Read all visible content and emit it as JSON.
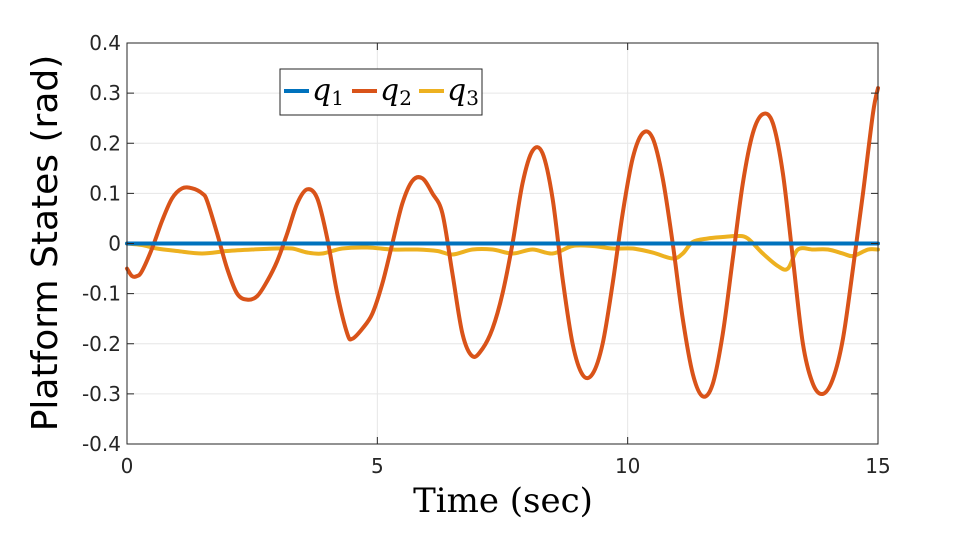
{
  "chart_data": {
    "type": "line",
    "title": "",
    "xlabel": "Time (sec)",
    "ylabel": "Platform States (rad)",
    "xlim": [
      0,
      15
    ],
    "ylim": [
      -0.4,
      0.4
    ],
    "xticks": [
      0,
      5,
      10,
      15
    ],
    "xtick_labels": [
      "0",
      "5",
      "10",
      "15"
    ],
    "yticks": [
      -0.4,
      -0.3,
      -0.2,
      -0.1,
      0,
      0.1,
      0.2,
      0.3,
      0.4
    ],
    "ytick_labels": [
      "-0.4",
      "-0.3",
      "-0.2",
      "-0.1",
      "0",
      "0.1",
      "0.2",
      "0.3",
      "0.4"
    ],
    "grid": true,
    "legend_position": "top-left",
    "series": [
      {
        "name": "q1",
        "symbol": "q",
        "subscript": "1",
        "color": "#0072BD",
        "x": [
          0,
          15
        ],
        "y": [
          0,
          0
        ]
      },
      {
        "name": "q2",
        "symbol": "q",
        "subscript": "2",
        "color": "#D95319",
        "x": [
          0,
          0.1,
          0.2,
          0.3,
          0.5,
          0.7,
          0.9,
          1.1,
          1.3,
          1.5,
          1.6,
          1.8,
          2.0,
          2.2,
          2.4,
          2.6,
          2.8,
          3.0,
          3.2,
          3.4,
          3.6,
          3.8,
          4.0,
          4.2,
          4.4,
          4.5,
          4.7,
          4.9,
          5.1,
          5.3,
          5.5,
          5.7,
          5.9,
          6.1,
          6.3,
          6.5,
          6.7,
          6.9,
          7.1,
          7.3,
          7.5,
          7.7,
          7.9,
          8.1,
          8.3,
          8.5,
          8.7,
          8.9,
          9.1,
          9.3,
          9.5,
          9.7,
          9.9,
          10.1,
          10.3,
          10.5,
          10.7,
          10.9,
          11.1,
          11.3,
          11.5,
          11.7,
          11.9,
          12.1,
          12.3,
          12.5,
          12.7,
          12.9,
          13.1,
          13.3,
          13.5,
          13.7,
          13.9,
          14.1,
          14.3,
          14.5,
          14.7,
          14.9,
          15.0
        ],
        "y": [
          -0.05,
          -0.065,
          -0.065,
          -0.055,
          -0.01,
          0.045,
          0.09,
          0.11,
          0.11,
          0.1,
          0.085,
          0.02,
          -0.05,
          -0.1,
          -0.112,
          -0.105,
          -0.075,
          -0.035,
          0.02,
          0.08,
          0.108,
          0.09,
          0.01,
          -0.1,
          -0.18,
          -0.19,
          -0.17,
          -0.14,
          -0.08,
          0.0,
          0.08,
          0.125,
          0.13,
          0.1,
          0.06,
          -0.06,
          -0.18,
          -0.225,
          -0.21,
          -0.17,
          -0.1,
          0.0,
          0.12,
          0.185,
          0.18,
          0.09,
          -0.07,
          -0.2,
          -0.262,
          -0.26,
          -0.2,
          -0.08,
          0.06,
          0.17,
          0.22,
          0.21,
          0.13,
          0.0,
          -0.15,
          -0.26,
          -0.305,
          -0.28,
          -0.18,
          -0.03,
          0.12,
          0.22,
          0.258,
          0.24,
          0.14,
          -0.03,
          -0.2,
          -0.28,
          -0.3,
          -0.27,
          -0.19,
          -0.05,
          0.1,
          0.26,
          0.31
        ]
      },
      {
        "name": "q3",
        "symbol": "q",
        "subscript": "3",
        "color": "#EDB120",
        "x": [
          0,
          0.3,
          0.6,
          1.0,
          1.5,
          2.0,
          2.5,
          3.0,
          3.3,
          3.6,
          3.9,
          4.3,
          4.8,
          5.3,
          5.8,
          6.2,
          6.5,
          6.9,
          7.3,
          7.7,
          8.1,
          8.5,
          8.9,
          9.3,
          9.7,
          10.1,
          10.5,
          10.9,
          11.1,
          11.3,
          11.6,
          11.9,
          12.2,
          12.4,
          12.7,
          13.0,
          13.2,
          13.4,
          13.7,
          14.0,
          14.3,
          14.5,
          14.8,
          15.0
        ],
        "y": [
          0,
          -0.003,
          -0.01,
          -0.015,
          -0.02,
          -0.015,
          -0.012,
          -0.01,
          -0.01,
          -0.018,
          -0.02,
          -0.01,
          -0.008,
          -0.012,
          -0.012,
          -0.015,
          -0.022,
          -0.012,
          -0.012,
          -0.02,
          -0.012,
          -0.02,
          -0.005,
          -0.005,
          -0.01,
          -0.01,
          -0.018,
          -0.03,
          -0.02,
          0.003,
          0.01,
          0.013,
          0.015,
          0.01,
          -0.02,
          -0.045,
          -0.05,
          -0.012,
          -0.012,
          -0.012,
          -0.02,
          -0.025,
          -0.012,
          -0.012
        ]
      }
    ]
  }
}
